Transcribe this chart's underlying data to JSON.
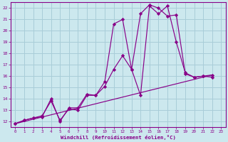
{
  "bg_color": "#cce8ee",
  "grid_color": "#a8cdd8",
  "line_color": "#880088",
  "marker_color": "#880088",
  "xlabel": "Windchill (Refroidissement éolien,°C)",
  "xlabel_color": "#880088",
  "xlim": [
    -0.5,
    23.5
  ],
  "ylim": [
    11.5,
    22.5
  ],
  "xticks": [
    0,
    1,
    2,
    3,
    4,
    5,
    6,
    7,
    8,
    9,
    10,
    11,
    12,
    13,
    14,
    15,
    16,
    17,
    18,
    19,
    20,
    21,
    22,
    23
  ],
  "yticks": [
    12,
    13,
    14,
    15,
    16,
    17,
    18,
    19,
    20,
    21,
    22
  ],
  "series1_x": [
    0,
    1,
    2,
    3,
    4,
    5,
    6,
    7,
    8,
    9,
    10,
    11,
    12,
    13,
    14,
    15,
    16,
    17,
    18,
    19,
    20,
    21,
    22
  ],
  "series1_y": [
    11.8,
    12.1,
    12.3,
    12.5,
    13.8,
    12.1,
    13.1,
    13.0,
    14.3,
    14.3,
    15.1,
    16.6,
    17.8,
    16.6,
    14.3,
    22.2,
    21.5,
    22.2,
    19.0,
    16.3,
    15.9,
    16.0,
    15.9
  ],
  "series2_x": [
    0,
    1,
    2,
    3,
    4,
    5,
    6,
    7,
    8,
    9,
    10,
    11,
    12,
    13,
    14,
    15,
    16,
    17,
    18,
    19,
    20,
    21,
    22
  ],
  "series2_y": [
    11.8,
    12.1,
    12.3,
    12.4,
    14.0,
    12.0,
    13.2,
    13.2,
    14.4,
    14.3,
    15.5,
    20.6,
    21.0,
    16.6,
    21.5,
    22.3,
    22.0,
    21.3,
    21.4,
    16.2,
    15.9,
    16.0,
    16.1
  ],
  "series3_x": [
    0,
    22
  ],
  "series3_y": [
    11.8,
    16.1
  ]
}
